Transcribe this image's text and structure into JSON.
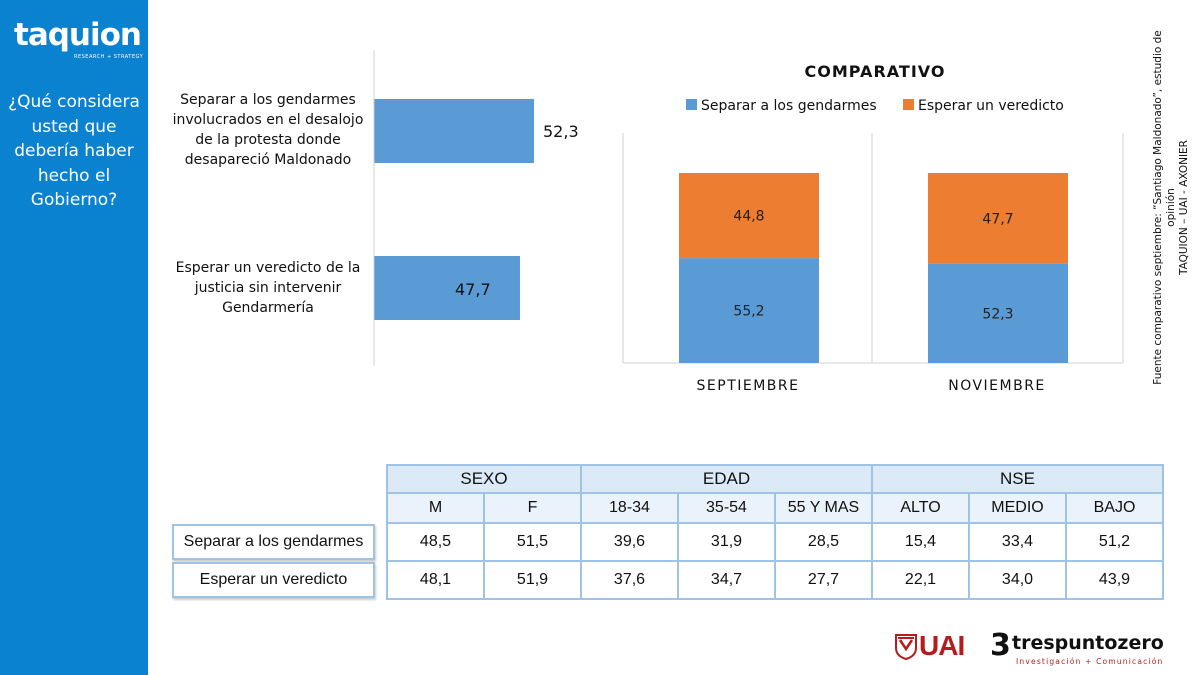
{
  "sidebar": {
    "logo_text": "taquion",
    "logo_sub": "RESEARCH + STRATEGY",
    "question": "¿Qué considera usted que debería haber hecho el Gobierno?"
  },
  "chart_data": [
    {
      "type": "bar",
      "orientation": "horizontal",
      "categories": [
        "Separar a los gendarmes involucrados en el desalojo de la protesta donde desapareció Maldonado",
        "Esperar un veredicto de la justicia sin intervenir Gendarmería"
      ],
      "values": [
        52.3,
        47.7
      ],
      "value_labels": [
        "52,3",
        "47,7"
      ],
      "color": "#5b9bd5",
      "xlim": [
        0,
        100
      ],
      "grid": false
    },
    {
      "type": "bar",
      "stacked": true,
      "title": "COMPARATIVO",
      "categories": [
        "SEPTIEMBRE",
        "NOVIEMBRE"
      ],
      "series": [
        {
          "name": "Separar a los gendarmes",
          "values": [
            55.2,
            52.3
          ],
          "value_labels": [
            "55,2",
            "52,3"
          ],
          "color": "#5b9bd5"
        },
        {
          "name": "Esperar un veredicto",
          "values": [
            44.8,
            47.7
          ],
          "value_labels": [
            "44,8",
            "47,7"
          ],
          "color": "#ed7d31"
        }
      ],
      "ylim": [
        0,
        100
      ],
      "legend": "top",
      "grid": false
    }
  ],
  "source": {
    "line1": "Fuente comparativo septiembre: “Santiago Maldonado”, estudio de opinión",
    "line2": "TAQUION – UAI - AXONIER"
  },
  "table": {
    "groups": [
      "SEXO",
      "EDAD",
      "NSE"
    ],
    "columns": [
      "M",
      "F",
      "18-34",
      "35-54",
      "55 Y MAS",
      "ALTO",
      "MEDIO",
      "BAJO"
    ],
    "rows": [
      {
        "label": "Separar a los gendarmes",
        "values": [
          "48,5",
          "51,5",
          "39,6",
          "31,9",
          "28,5",
          "15,4",
          "33,4",
          "51,2"
        ]
      },
      {
        "label": "Esperar un veredicto",
        "values": [
          "48,1",
          "51,9",
          "37,6",
          "34,7",
          "27,7",
          "22,1",
          "34,0",
          "43,9"
        ]
      }
    ]
  },
  "logos": {
    "uai": "UAI",
    "tres_num": "3",
    "tres_name": "trespuntozero",
    "tres_tag": "Investigación + Comunicación"
  }
}
